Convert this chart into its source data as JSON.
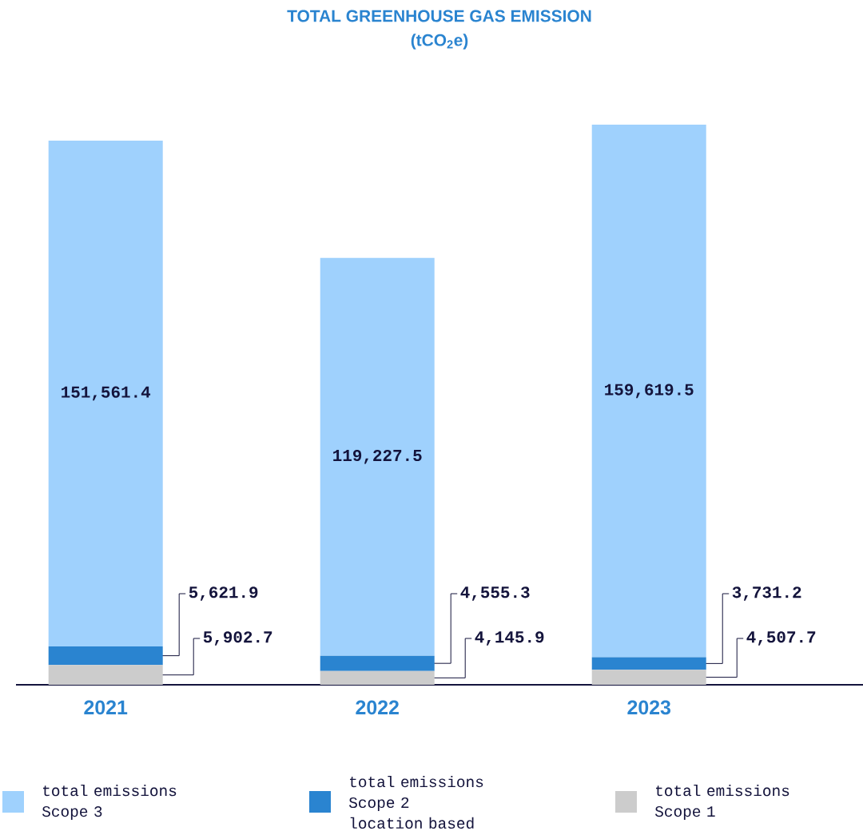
{
  "chart_data": {
    "type": "bar",
    "title": "TOTAL GREENHOUSE GAS EMISSION",
    "subtitle": "(tCO$_{2}$e)",
    "categories": [
      "2021",
      "2022",
      "2023"
    ],
    "stacked": true,
    "legend": "bottom",
    "series": [
      {
        "name": "total emissions Scope 1",
        "color": "#cccccc",
        "values": [
          5902.7,
          4145.9,
          4507.7
        ],
        "value_labels": [
          "5,902.7",
          "4,145.9",
          "4,507.7"
        ]
      },
      {
        "name": "total emissions Scope 2 location based",
        "color": "#2a84d0",
        "values": [
          5621.9,
          4555.3,
          3731.2
        ],
        "value_labels": [
          "5,621.9",
          "4,555.3",
          "3,731.2"
        ]
      },
      {
        "name": "total emissions Scope 3",
        "color": "#9fd1fd",
        "values": [
          151561.4,
          119227.5,
          159619.5
        ],
        "value_labels": [
          "151,561.4",
          "119,227.5",
          "159,619.5"
        ]
      }
    ]
  }
}
